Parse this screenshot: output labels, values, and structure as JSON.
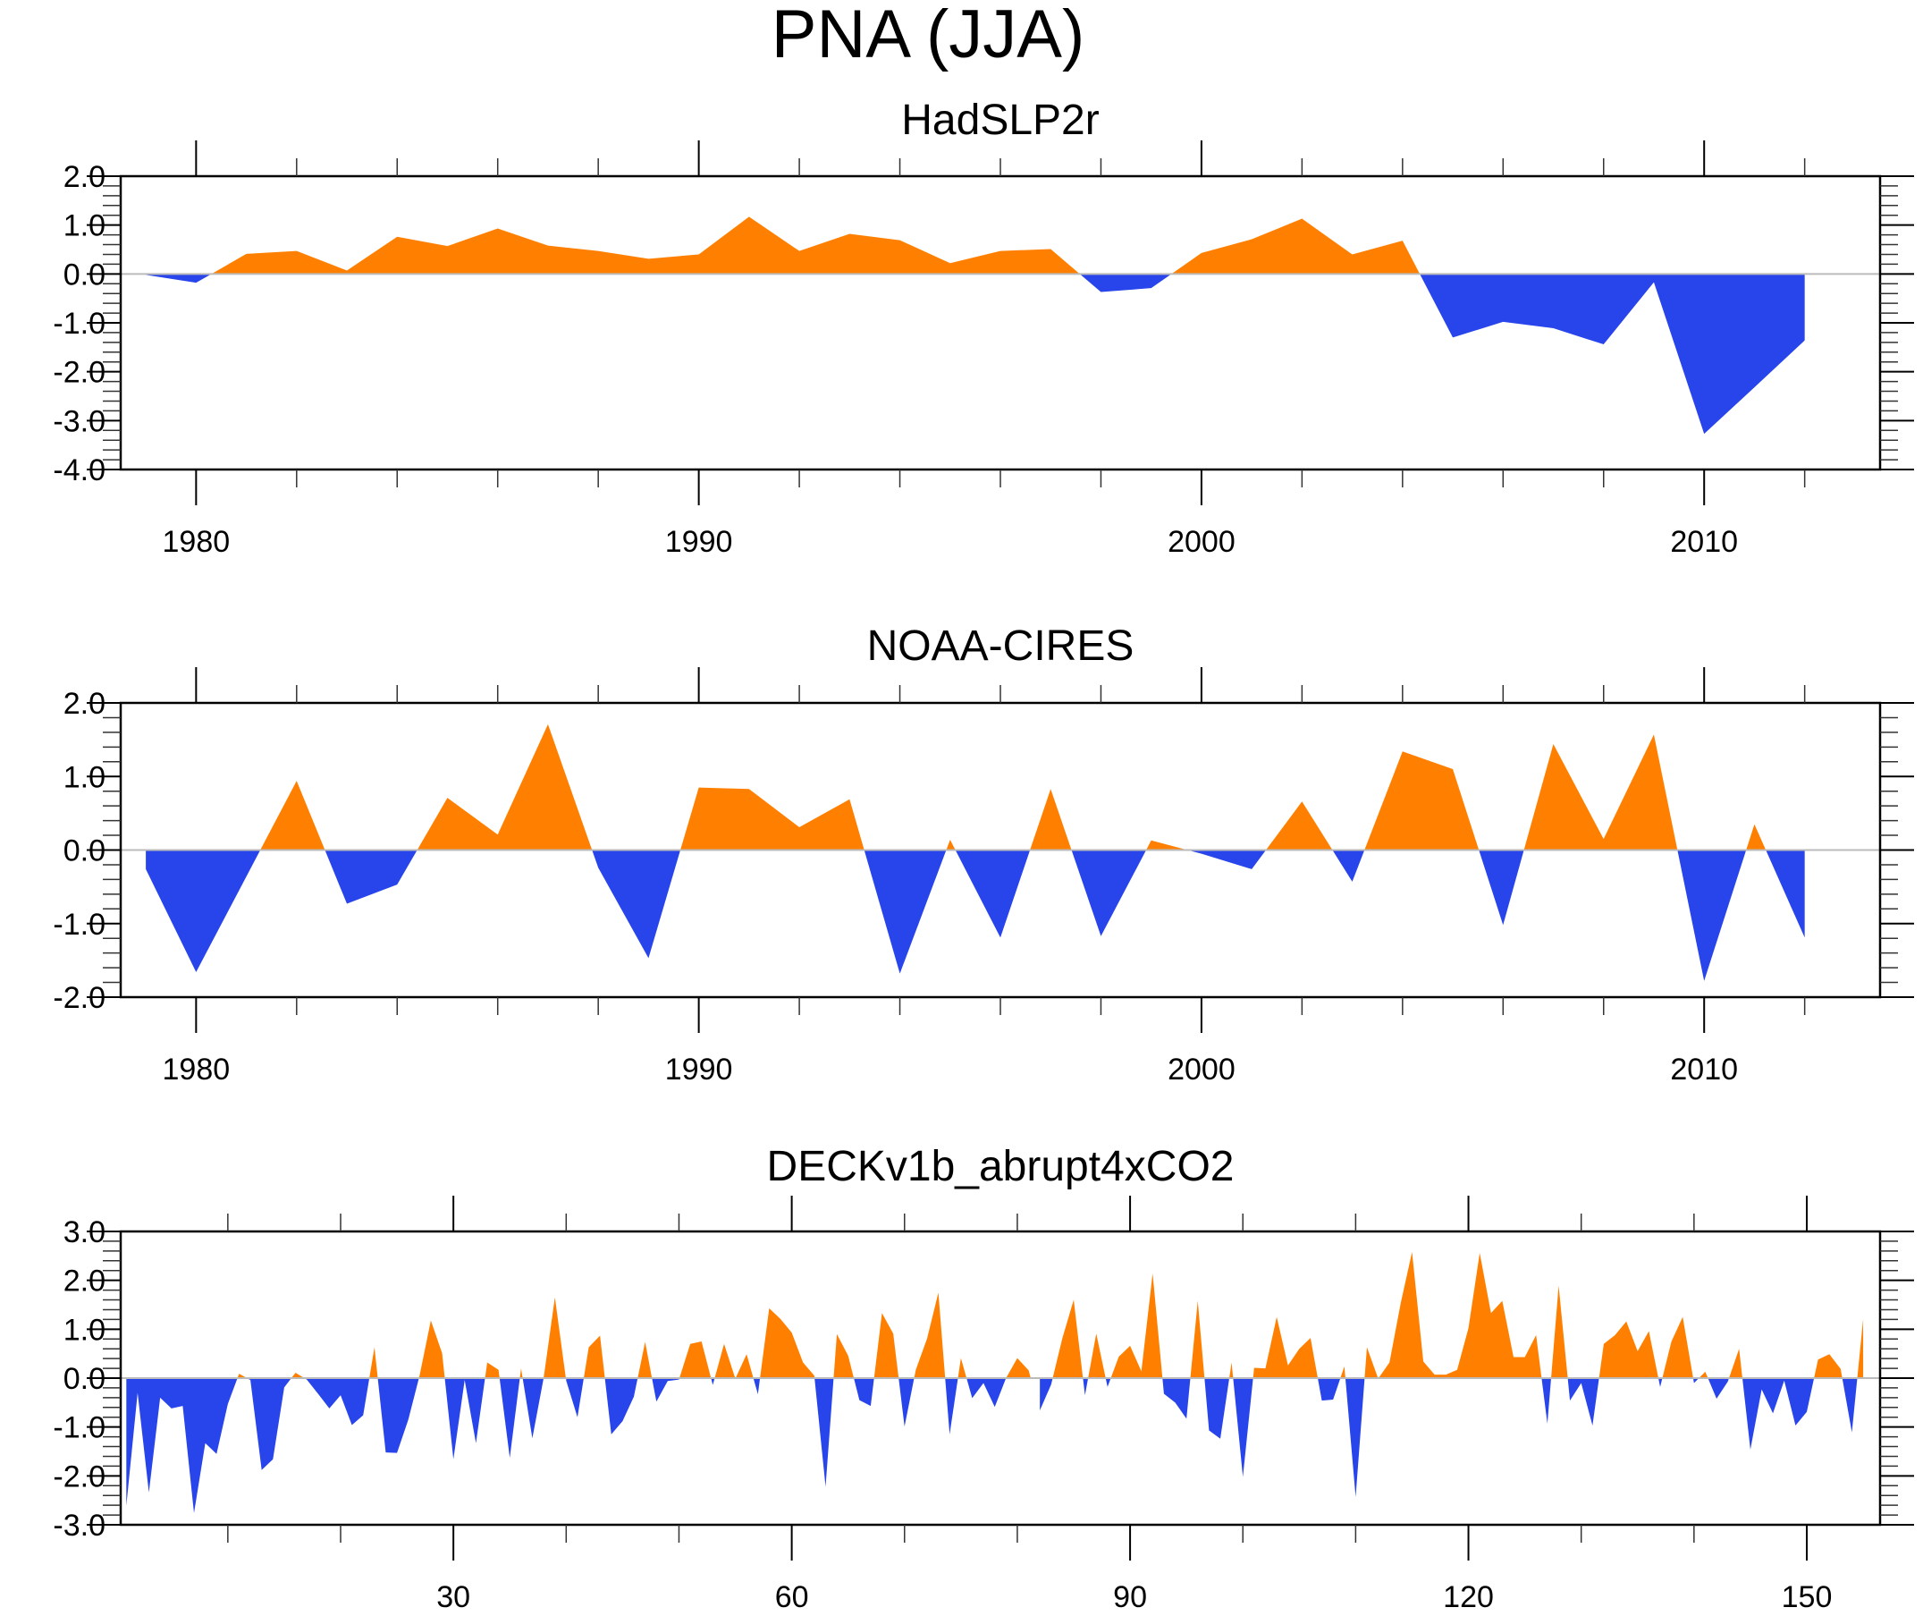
{
  "title": "PNA (JJA)",
  "colors": {
    "positive": "#FF8000",
    "negative": "#2844EB"
  },
  "chart_data": [
    {
      "type": "area",
      "title": "HadSLP2r",
      "xlabel": "",
      "ylabel": "",
      "xlim": [
        1978.5,
        2013.5
      ],
      "ylim": [
        -4.0,
        2.0
      ],
      "x_major_ticks": [
        1980,
        1990,
        2000,
        2010
      ],
      "x_tick_labels": [
        "1980",
        "1990",
        "2000",
        "2010"
      ],
      "x_minor_step": 2,
      "y_major_ticks": [
        2.0,
        1.0,
        0.0,
        -1.0,
        -2.0,
        -3.0,
        -4.0
      ],
      "y_tick_labels": [
        "2.0",
        "1.0",
        "0.0",
        "-1.0",
        "-2.0",
        "-3.0",
        "-4.0"
      ],
      "y_minor_step": 0.2,
      "grid": false,
      "fill_above_zero": "positive",
      "fill_below_zero": "negative",
      "x": [
        1979,
        1980,
        1981,
        1982,
        1983,
        1984,
        1985,
        1986,
        1987,
        1988,
        1989,
        1990,
        1991,
        1992,
        1993,
        1994,
        1995,
        1996,
        1997,
        1998,
        1999,
        2000,
        2001,
        2002,
        2003,
        2004,
        2005,
        2006,
        2007,
        2008,
        2009,
        2010,
        2011,
        2012
      ],
      "values": [
        -0.02,
        -0.18,
        0.41,
        0.47,
        0.07,
        0.76,
        0.57,
        0.93,
        0.58,
        0.47,
        0.31,
        0.4,
        1.17,
        0.47,
        0.82,
        0.69,
        0.22,
        0.47,
        0.51,
        -0.37,
        -0.29,
        0.43,
        0.71,
        1.13,
        0.4,
        0.68,
        -1.3,
        -0.98,
        -1.11,
        -1.44,
        -0.17,
        -3.27,
        -2.32,
        -1.36
      ]
    },
    {
      "type": "area",
      "title": "NOAA-CIRES",
      "xlabel": "",
      "ylabel": "",
      "xlim": [
        1978.5,
        2013.5
      ],
      "ylim": [
        -2.0,
        2.0
      ],
      "x_major_ticks": [
        1980,
        1990,
        2000,
        2010
      ],
      "x_tick_labels": [
        "1980",
        "1990",
        "2000",
        "2010"
      ],
      "x_minor_step": 2,
      "y_major_ticks": [
        2.0,
        1.0,
        0.0,
        -1.0,
        -2.0
      ],
      "y_tick_labels": [
        "2.0",
        "1.0",
        "0.0",
        "-1.0",
        "-2.0"
      ],
      "y_minor_step": 0.2,
      "grid": false,
      "fill_above_zero": "positive",
      "fill_below_zero": "negative",
      "x": [
        1979,
        1980,
        1981,
        1982,
        1983,
        1984,
        1985,
        1986,
        1987,
        1988,
        1989,
        1990,
        1991,
        1992,
        1993,
        1994,
        1995,
        1996,
        1997,
        1998,
        1999,
        2000,
        2001,
        2002,
        2003,
        2004,
        2005,
        2006,
        2007,
        2008,
        2009,
        2010,
        2011,
        2012
      ],
      "values": [
        -0.26,
        -1.66,
        -0.36,
        0.94,
        -0.73,
        -0.47,
        0.71,
        0.21,
        1.71,
        -0.24,
        -1.47,
        0.85,
        0.83,
        0.31,
        0.69,
        -1.68,
        0.14,
        -1.19,
        0.83,
        -1.17,
        0.13,
        -0.05,
        -0.26,
        0.66,
        -0.43,
        1.34,
        1.1,
        -1.02,
        1.44,
        0.15,
        1.57,
        -1.78,
        0.35,
        -1.19
      ]
    },
    {
      "type": "area",
      "title": "DECKv1b_abrupt4xCO2",
      "xlabel": "",
      "ylabel": "",
      "xlim": [
        0.5,
        156.5
      ],
      "ylim": [
        -3.0,
        3.0
      ],
      "x_major_ticks": [
        30,
        60,
        90,
        120,
        150
      ],
      "x_tick_labels": [
        "30",
        "60",
        "90",
        "120",
        "150"
      ],
      "x_minor_step": 10,
      "y_major_ticks": [
        3.0,
        2.0,
        1.0,
        0.0,
        -1.0,
        -2.0,
        -3.0
      ],
      "y_tick_labels": [
        "3.0",
        "2.0",
        "1.0",
        "0.0",
        "-1.0",
        "-2.0",
        "-3.0"
      ],
      "y_minor_step": 0.2,
      "grid": false,
      "fill_above_zero": "positive",
      "fill_below_zero": "negative",
      "x_start": 1,
      "values": [
        -2.61,
        -0.3,
        -2.34,
        -0.4,
        -0.62,
        -0.57,
        -2.76,
        -1.33,
        -1.55,
        -0.53,
        0.09,
        -0.04,
        -1.88,
        -1.66,
        -0.19,
        0.11,
        -0.03,
        -0.32,
        -0.62,
        -0.35,
        -0.96,
        -0.76,
        0.63,
        -1.52,
        -1.53,
        -0.85,
        0.05,
        1.18,
        0.51,
        -1.66,
        -0.04,
        -1.33,
        0.32,
        0.17,
        -1.63,
        0.2,
        -1.23,
        0.0,
        1.65,
        -0.05,
        -0.8,
        0.63,
        0.87,
        -1.15,
        -0.88,
        -0.38,
        0.74,
        -0.48,
        -0.06,
        -0.03,
        0.7,
        0.75,
        -0.14,
        0.7,
        -0.01,
        0.49,
        -0.33,
        1.43,
        1.21,
        0.93,
        0.32,
        0.05,
        -2.22,
        0.9,
        0.46,
        -0.45,
        -0.57,
        1.33,
        0.91,
        -0.99,
        0.17,
        0.81,
        1.75,
        -1.15,
        0.41,
        -0.41,
        -0.1,
        -0.59,
        0.0,
        0.41,
        0.16,
        -0.66,
        -0.13,
        0.82,
        1.6,
        -0.35,
        0.91,
        -0.18,
        0.44,
        0.66,
        0.14,
        2.14,
        -0.32,
        -0.5,
        -0.83,
        1.58,
        -1.07,
        -1.24,
        0.32,
        -2.02,
        0.21,
        0.2,
        1.25,
        0.26,
        0.6,
        0.82,
        -0.46,
        -0.44,
        0.24,
        -2.43,
        0.63,
        -0.01,
        0.32,
        1.54,
        2.58,
        0.34,
        0.07,
        0.07,
        0.17,
        1.02,
        2.56,
        1.33,
        1.58,
        0.43,
        0.43,
        0.88,
        -0.93,
        1.89,
        -0.46,
        -0.1,
        -0.97,
        0.7,
        0.88,
        1.16,
        0.55,
        0.96,
        -0.18,
        0.75,
        1.25,
        -0.1,
        0.13,
        -0.42,
        -0.07,
        0.6,
        -1.46,
        -0.23,
        -0.72,
        -0.05,
        -0.97,
        -0.69,
        0.38,
        0.49,
        0.19,
        -1.11,
        1.21
      ]
    }
  ]
}
